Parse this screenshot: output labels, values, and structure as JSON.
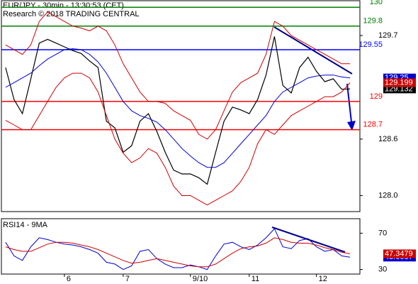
{
  "chart_data": [
    {
      "type": "line",
      "title": "EUR/JPY - 30min - 13:30:53 (CET)",
      "subtitle": "Research © 2018 TRADING CENTRAL",
      "ylim": [
        127.83,
        130.07
      ],
      "yticks": [
        {
          "value": 128,
          "label": "128.0"
        },
        128.6,
        129.7
      ],
      "levels": [
        {
          "value": 130,
          "color": "#008000"
        },
        {
          "value": 129.8,
          "color": "#008000"
        },
        {
          "value": 129.55,
          "color": "#0000ff"
        },
        {
          "value": 129,
          "color": "#ff0000"
        },
        {
          "value": 128.7,
          "color": "#ff0000"
        }
      ],
      "series": [
        {
          "color": "#000000",
          "values": [
            129.36,
            129.02,
            128.87,
            129.24,
            129.62,
            129.66,
            129.62,
            129.58,
            129.54,
            129.51,
            129.43,
            129.36,
            128.79,
            128.72,
            128.46,
            128.53,
            128.79,
            128.87,
            128.68,
            128.46,
            128.27,
            128.23,
            128.23,
            128.19,
            128.12,
            128.46,
            128.79,
            128.94,
            128.91,
            128.87,
            129.02,
            129.28,
            129.69,
            129.17,
            129.09,
            129.36,
            129.47,
            129.32,
            129.21,
            129.24,
            129.13,
            129.132
          ]
        },
        {
          "color": "#0000cc",
          "values": [
            129.15,
            129.2,
            129.25,
            129.3,
            129.38,
            129.45,
            129.5,
            129.55,
            129.56,
            129.55,
            129.5,
            129.42,
            129.3,
            129.15,
            129.0,
            128.9,
            128.85,
            128.82,
            128.78,
            128.7,
            128.6,
            128.5,
            128.42,
            128.35,
            128.3,
            128.3,
            128.35,
            128.45,
            128.55,
            128.65,
            128.75,
            128.85,
            129.0,
            129.1,
            129.15,
            129.2,
            129.25,
            129.27,
            129.28,
            129.28,
            129.26,
            129.25
          ]
        },
        {
          "color": "#cc0000",
          "values": [
            129.6,
            129.55,
            129.5,
            129.6,
            129.85,
            129.95,
            129.9,
            129.85,
            129.8,
            129.78,
            129.75,
            129.8,
            129.75,
            129.6,
            129.4,
            129.25,
            129.1,
            129.0,
            129.0,
            128.98,
            128.9,
            128.85,
            128.8,
            128.65,
            128.6,
            128.7,
            128.9,
            129.1,
            129.2,
            129.25,
            129.3,
            129.5,
            129.85,
            129.8,
            129.7,
            129.65,
            129.6,
            129.55,
            129.5,
            129.45,
            129.4,
            129.4
          ]
        },
        {
          "color": "#cc0000",
          "values": [
            128.8,
            128.75,
            128.7,
            128.7,
            128.85,
            129.0,
            129.15,
            129.25,
            129.3,
            129.3,
            129.25,
            129.1,
            128.85,
            128.6,
            128.45,
            128.35,
            128.4,
            128.5,
            128.45,
            128.3,
            128.1,
            128.0,
            128.0,
            127.95,
            127.9,
            127.95,
            128.0,
            128.05,
            128.15,
            128.3,
            128.55,
            128.7,
            128.65,
            128.75,
            128.85,
            128.9,
            128.95,
            129.0,
            129.05,
            129.05,
            129.1,
            129.199
          ]
        }
      ]
    },
    {
      "type": "line",
      "title": "RSI14 - 9MA",
      "categories": [
        null,
        null,
        null,
        null,
        null,
        null,
        null,
        "6",
        null,
        null,
        null,
        null,
        null,
        null,
        "7",
        null,
        null,
        null,
        null,
        null,
        null,
        null,
        "9/10",
        null,
        null,
        null,
        null,
        null,
        null,
        "11",
        null,
        null,
        null,
        null,
        null,
        null,
        null,
        "12",
        null,
        null,
        null,
        null
      ],
      "ylim": [
        25,
        86
      ],
      "yticks": [
        30,
        70
      ],
      "series": [
        {
          "color": "#0000cc",
          "values": [
            60,
            45,
            40,
            55,
            65,
            63,
            60,
            58,
            57,
            55,
            52,
            48,
            38,
            36,
            30,
            34,
            50,
            52,
            42,
            36,
            32,
            32,
            35,
            33,
            30,
            45,
            58,
            60,
            55,
            52,
            57,
            65,
            75,
            55,
            53,
            62,
            64,
            55,
            50,
            52,
            45,
            43.6087
          ]
        },
        {
          "color": "#cc0000",
          "values": [
            55,
            52,
            50,
            50,
            54,
            58,
            60,
            60,
            59,
            57,
            55,
            52,
            48,
            44,
            40,
            37,
            38,
            40,
            42,
            40,
            38,
            36,
            34,
            33,
            33,
            36,
            42,
            48,
            53,
            55,
            56,
            59,
            65,
            63,
            60,
            59,
            59,
            57,
            54,
            52,
            49,
            47.3479
          ]
        }
      ]
    }
  ]
}
